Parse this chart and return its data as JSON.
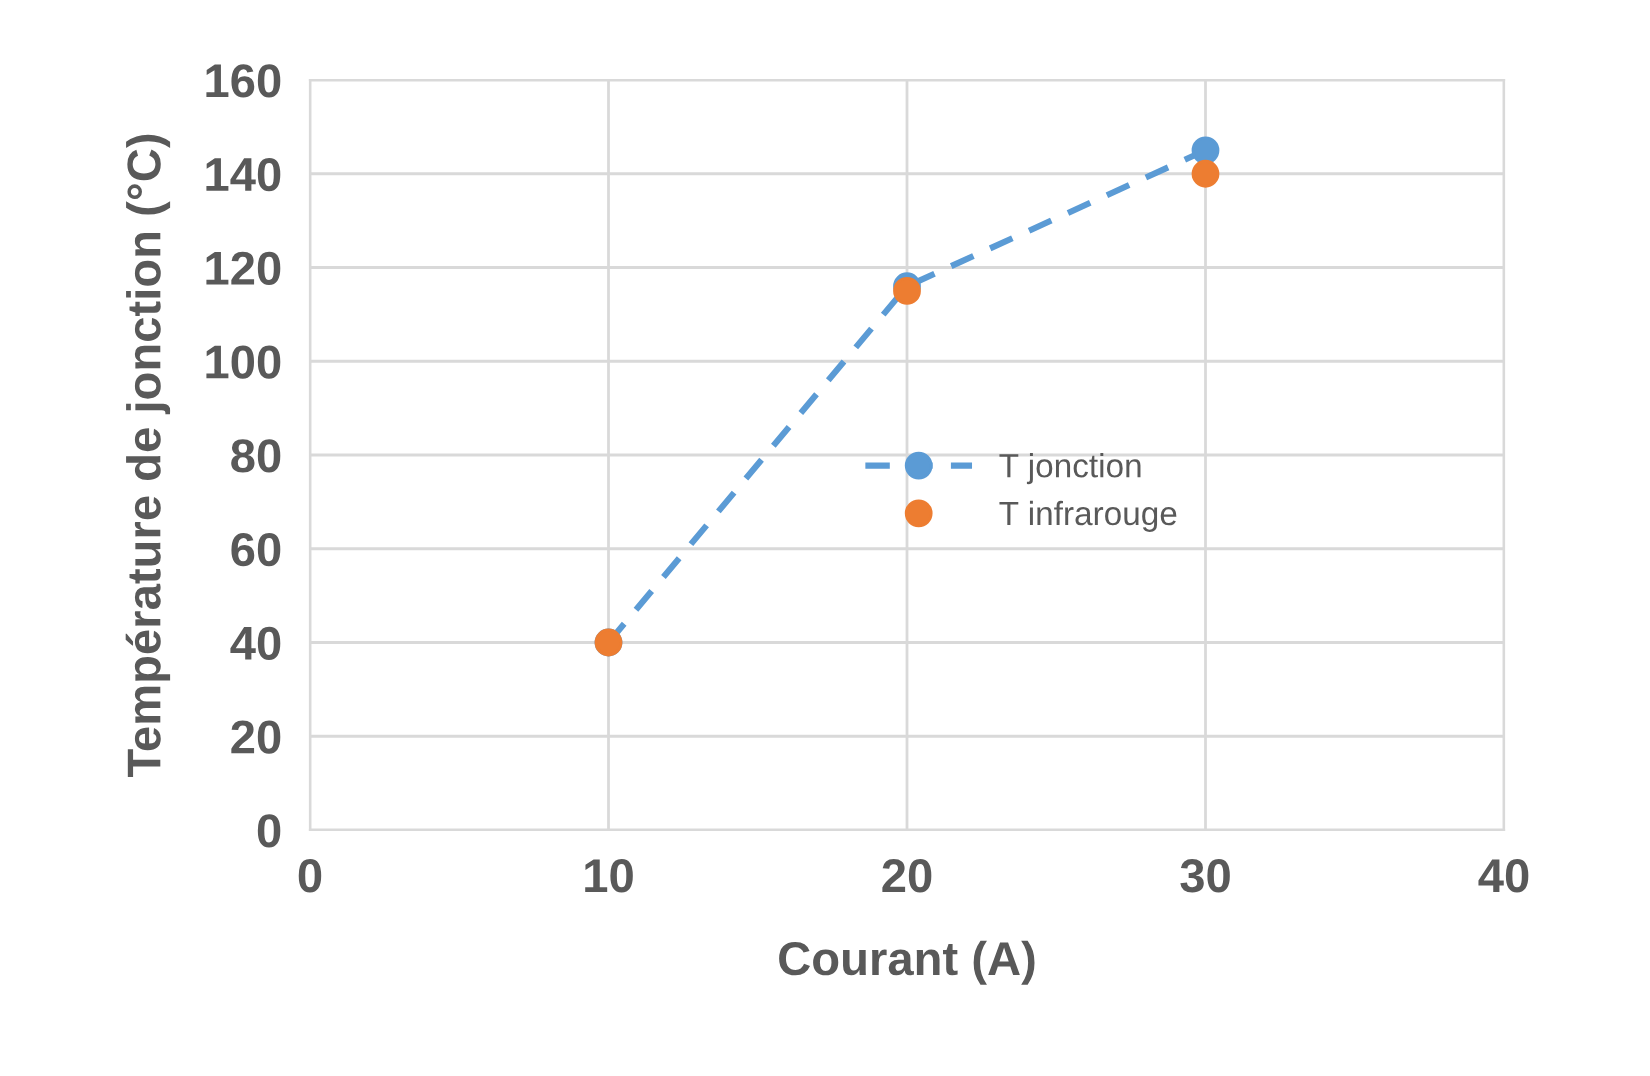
{
  "chart_data": {
    "type": "scatter",
    "xlabel": "Courant (A)",
    "ylabel": "Température de jonction (°C)",
    "x": [
      10,
      20,
      30
    ],
    "series": [
      {
        "name": "T jonction",
        "color": "#5b9bd5",
        "values": [
          40,
          116,
          145
        ],
        "type": "line",
        "line_style": "dashed",
        "marker": "circle"
      },
      {
        "name": "T infrarouge",
        "color": "#ed7d31",
        "values": [
          40,
          115,
          140
        ],
        "marker": "circle"
      }
    ],
    "xlim": [
      0,
      40
    ],
    "xticks": [
      0,
      10,
      20,
      30,
      40
    ],
    "ylim": [
      0,
      160
    ],
    "yticks": [
      0,
      20,
      40,
      60,
      80,
      100,
      120,
      140,
      160
    ],
    "grid": true,
    "legend": "right"
  }
}
